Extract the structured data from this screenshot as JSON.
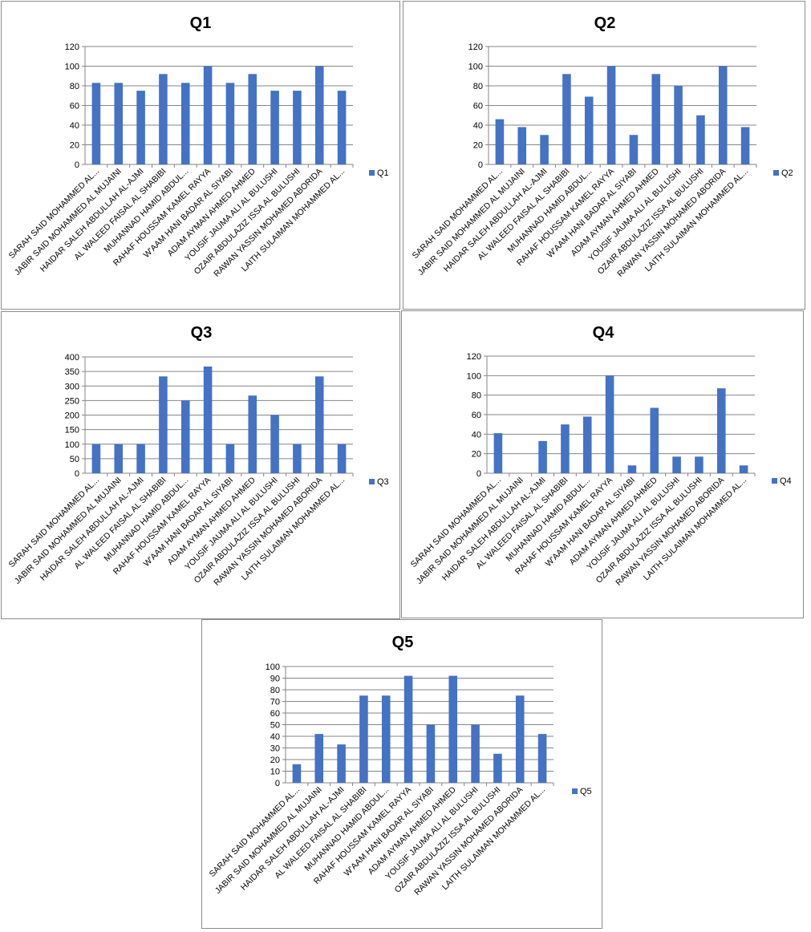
{
  "colors": {
    "bar": "#4472C4",
    "grid": "#868686",
    "axis": "#868686"
  },
  "chart_data": [
    {
      "type": "bar",
      "title": "Q1",
      "categories": [
        "SARAH SAID MOHAMMED AL...",
        "JABIR SAID MOHAMMED AL MUJAINI",
        "HAIDAR SALEH ABDULLAH AL-AJMI",
        "AL WALEED FAISAL AL SHABIBI",
        "MUHANNAD HAMID ABDUL...",
        "RAHAF HOUSSAM KAMEL RAYYA",
        "W'AAM HANI BADAR AL SIYABI",
        "ADAM AYMAN AHMED AHMED",
        "YOUSIF JAUMA ALI AL BULUSHI",
        "OZAIR ABDULAZIZ ISSA AL BULUSHI",
        "RAWAN YASSIN MOHAMED ABORIDA",
        "LAITH SULAIMAN MOHAMMED AL..."
      ],
      "series": [
        {
          "name": "Q1",
          "values": [
            83,
            83,
            75,
            92,
            83,
            100,
            83,
            92,
            75,
            75,
            100,
            75
          ]
        }
      ],
      "ylim": [
        0,
        120
      ],
      "yticks": [
        "0",
        "20",
        "40",
        "60",
        "80",
        "100",
        "120"
      ],
      "grid": true,
      "legend": "right"
    },
    {
      "type": "bar",
      "title": "Q2",
      "categories": [
        "SARAH SAID MOHAMMED AL...",
        "JABIR SAID MOHAMMED AL MUJAINI",
        "HAIDAR SALEH ABDULLAH AL-AJMI",
        "AL WALEED FAISAL AL SHABIBI",
        "MUHANNAD HAMID ABDUL...",
        "RAHAF HOUSSAM KAMEL RAYYA",
        "W'AAM HANI BADAR AL SIYABI",
        "ADAM AYMAN AHMED AHMED",
        "YOUSIF JAUMA ALI AL BULUSHI",
        "OZAIR ABDULAZIZ ISSA AL BULUSHI",
        "RAWAN YASSIN MOHAMED ABORIDA",
        "LAITH SULAIMAN MOHAMMED AL..."
      ],
      "series": [
        {
          "name": "Q2",
          "values": [
            46,
            38,
            30,
            92,
            69,
            100,
            30,
            92,
            80,
            50,
            100,
            38
          ]
        }
      ],
      "ylim": [
        0,
        120
      ],
      "yticks": [
        "0",
        "20",
        "40",
        "60",
        "80",
        "100",
        "120"
      ],
      "grid": true,
      "legend": "right"
    },
    {
      "type": "bar",
      "title": "Q3",
      "categories": [
        "SARAH SAID MOHAMMED AL...",
        "JABIR SAID MOHAMMED AL MUJAINI",
        "HAIDAR SALEH ABDULLAH AL-AJMI",
        "AL WALEED FAISAL AL SHABIBI",
        "MUHANNAD HAMID ABDUL...",
        "RAHAF HOUSSAM KAMEL RAYYA",
        "W'AAM HANI BADAR AL SIYABI",
        "ADAM AYMAN AHMED AHMED",
        "YOUSIF JAUMA ALI AL BULUSHI",
        "OZAIR ABDULAZIZ ISSA AL BULUSHI",
        "RAWAN YASSIN MOHAMED ABORIDA",
        "LAITH SULAIMAN MOHAMMED AL..."
      ],
      "series": [
        {
          "name": "Q3",
          "values": [
            100,
            100,
            100,
            333,
            250,
            367,
            100,
            267,
            200,
            100,
            333,
            100
          ]
        }
      ],
      "ylim": [
        0,
        400
      ],
      "yticks": [
        "0",
        "50",
        "100",
        "150",
        "200",
        "250",
        "300",
        "350",
        "400"
      ],
      "grid": true,
      "legend": "right"
    },
    {
      "type": "bar",
      "title": "Q4",
      "categories": [
        "SARAH SAID MOHAMMED AL...",
        "JABIR SAID MOHAMMED AL MUJAINI",
        "HAIDAR SALEH ABDULLAH AL-AJMI",
        "AL WALEED FAISAL AL SHABIBI",
        "MUHANNAD HAMID ABDUL...",
        "RAHAF HOUSSAM KAMEL RAYYA",
        "W'AAM HANI BADAR AL SIYABI",
        "ADAM AYMAN AHMED AHMED",
        "YOUSIF JAUMA ALI AL BULUSHI",
        "OZAIR ABDULAZIZ ISSA AL BULUSHI",
        "RAWAN YASSIN MOHAMED ABORIDA",
        "LAITH SULAIMAN MOHAMMED AL..."
      ],
      "series": [
        {
          "name": "Q4",
          "values": [
            41,
            0,
            33,
            50,
            58,
            100,
            8,
            67,
            17,
            17,
            87,
            8
          ]
        }
      ],
      "ylim": [
        0,
        120
      ],
      "yticks": [
        "0",
        "20",
        "40",
        "60",
        "80",
        "100",
        "120"
      ],
      "grid": true,
      "legend": "right"
    },
    {
      "type": "bar",
      "title": "Q5",
      "categories": [
        "SARAH SAID MOHAMMED AL...",
        "JABIR SAID MOHAMMED AL MUJAINI",
        "HAIDAR SALEH ABDULLAH AL-AJMI",
        "AL WALEED FAISAL AL SHABIBI",
        "MUHANNAD HAMID ABDUL...",
        "RAHAF HOUSSAM KAMEL RAYYA",
        "W'AAM HANI BADAR AL SIYABI",
        "ADAM AYMAN AHMED AHMED",
        "YOUSIF JAUMA ALI AL BULUSHI",
        "OZAIR ABDULAZIZ ISSA AL BULUSHI",
        "RAWAN YASSIN MOHAMED ABORIDA",
        "LAITH SULAIMAN MOHAMMED AL..."
      ],
      "series": [
        {
          "name": "Q5",
          "values": [
            16,
            42,
            33,
            75,
            75,
            92,
            50,
            92,
            50,
            25,
            75,
            42
          ]
        }
      ],
      "ylim": [
        0,
        100
      ],
      "yticks": [
        "0",
        "10",
        "20",
        "30",
        "40",
        "50",
        "60",
        "70",
        "80",
        "90",
        "100"
      ],
      "grid": true,
      "legend": "right"
    }
  ]
}
